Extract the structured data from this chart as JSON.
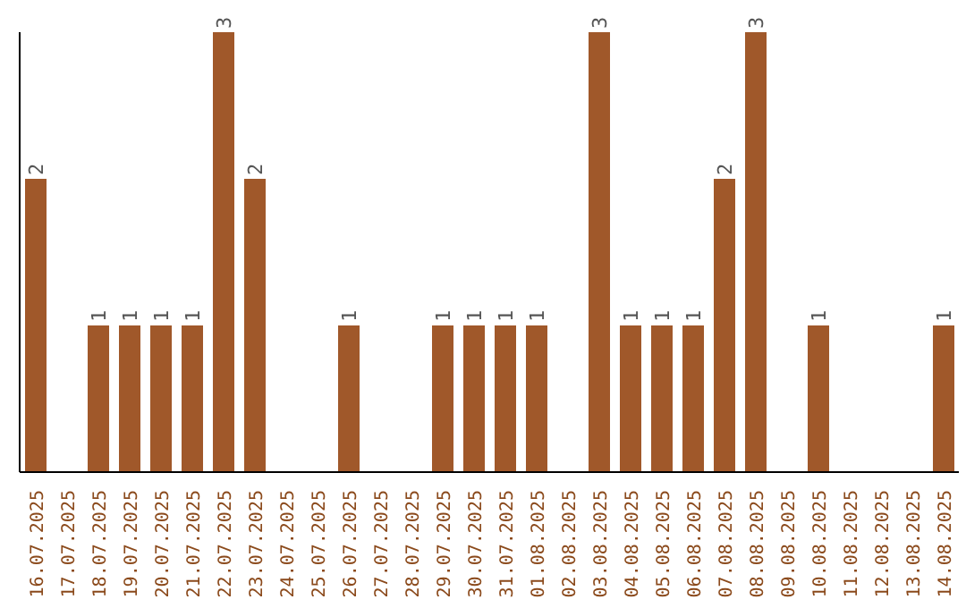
{
  "chart_data": {
    "type": "bar",
    "categories": [
      "16.07.2025",
      "17.07.2025",
      "18.07.2025",
      "19.07.2025",
      "20.07.2025",
      "21.07.2025",
      "22.07.2025",
      "23.07.2025",
      "24.07.2025",
      "25.07.2025",
      "26.07.2025",
      "27.07.2025",
      "28.07.2025",
      "29.07.2025",
      "30.07.2025",
      "31.07.2025",
      "01.08.2025",
      "02.08.2025",
      "03.08.2025",
      "04.08.2025",
      "05.08.2025",
      "06.08.2025",
      "07.08.2025",
      "08.08.2025",
      "09.08.2025",
      "10.08.2025",
      "11.08.2025",
      "12.08.2025",
      "13.08.2025",
      "14.08.2025"
    ],
    "values": [
      2,
      0,
      1,
      1,
      1,
      1,
      3,
      2,
      0,
      0,
      1,
      0,
      0,
      1,
      1,
      1,
      1,
      0,
      3,
      1,
      1,
      1,
      2,
      3,
      0,
      1,
      0,
      0,
      0,
      1
    ],
    "value_labels": [
      "2",
      null,
      "1",
      "1",
      "1",
      "1",
      "3",
      "2",
      null,
      null,
      "1",
      null,
      null,
      "1",
      "1",
      "1",
      "1",
      null,
      "3",
      "1",
      "1",
      "1",
      "2",
      "3",
      null,
      "1",
      null,
      null,
      null,
      "1"
    ],
    "color": "#a0582a",
    "tick_labels": "x"
  }
}
